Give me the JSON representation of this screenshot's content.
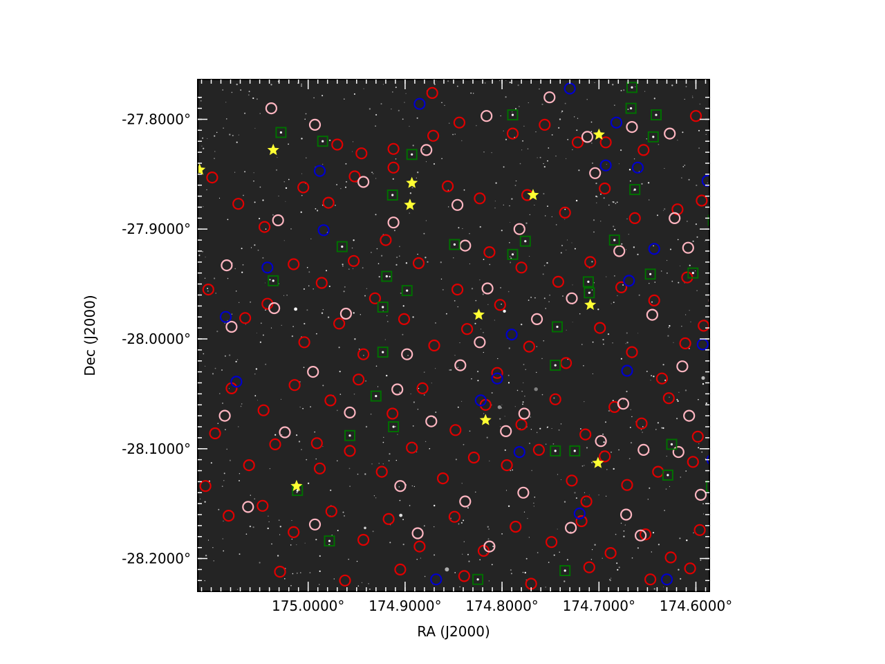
{
  "chart_data": {
    "type": "scatter",
    "title": "",
    "xlabel": "RA (J2000)",
    "ylabel": "Dec (J2000)",
    "x_axis": {
      "inverted": true,
      "unit": "deg"
    },
    "y_axis": {
      "unit": "deg"
    },
    "xlim": [
      175.1139,
      174.5861
    ],
    "ylim": [
      -28.2299,
      -27.7638
    ],
    "x_ticks": [
      {
        "value": 175.0,
        "label": "175.0000°"
      },
      {
        "value": 174.9,
        "label": "174.9000°"
      },
      {
        "value": 174.8,
        "label": "174.8000°"
      },
      {
        "value": 174.7,
        "label": "174.7000°"
      },
      {
        "value": 174.6,
        "label": "174.6000°"
      }
    ],
    "y_ticks": [
      {
        "value": -27.8,
        "label": "-27.8000°"
      },
      {
        "value": -27.9,
        "label": "-27.9000°"
      },
      {
        "value": -28.0,
        "label": "-28.0000°"
      },
      {
        "value": -28.1,
        "label": "-28.1000°"
      },
      {
        "value": -28.2,
        "label": "-28.2000°"
      }
    ],
    "grid": false,
    "background": "grayscale star-field image",
    "colors": {
      "red_circle": "#e00000",
      "pink_circle": "#ffb6c1",
      "blue_circle": "#0000cc",
      "green_square": "#007000",
      "yellow_star": "#ffff33",
      "frame": "#000000"
    },
    "series": [
      {
        "marker": "circle",
        "color": "red",
        "points": [
          [
            174.97,
            -27.823
          ],
          [
            174.945,
            -27.831
          ],
          [
            174.912,
            -27.827
          ],
          [
            174.871,
            -27.815
          ],
          [
            174.844,
            -27.803
          ],
          [
            174.789,
            -27.813
          ],
          [
            174.756,
            -27.805
          ],
          [
            174.722,
            -27.821
          ],
          [
            174.693,
            -27.821
          ],
          [
            174.654,
            -27.828
          ],
          [
            175.005,
            -27.862
          ],
          [
            174.979,
            -27.876
          ],
          [
            174.952,
            -27.852
          ],
          [
            174.912,
            -27.844
          ],
          [
            174.856,
            -27.861
          ],
          [
            174.823,
            -27.872
          ],
          [
            174.774,
            -27.869
          ],
          [
            174.735,
            -27.885
          ],
          [
            174.694,
            -27.863
          ],
          [
            174.663,
            -27.89
          ],
          [
            174.619,
            -27.882
          ],
          [
            174.594,
            -27.874
          ],
          [
            175.072,
            -27.877
          ],
          [
            175.045,
            -27.898
          ],
          [
            175.015,
            -27.932
          ],
          [
            174.986,
            -27.949
          ],
          [
            174.953,
            -27.929
          ],
          [
            174.92,
            -27.91
          ],
          [
            174.886,
            -27.931
          ],
          [
            174.846,
            -27.955
          ],
          [
            174.813,
            -27.921
          ],
          [
            174.78,
            -27.935
          ],
          [
            174.742,
            -27.948
          ],
          [
            174.709,
            -27.93
          ],
          [
            174.677,
            -27.953
          ],
          [
            174.643,
            -27.965
          ],
          [
            174.609,
            -27.944
          ],
          [
            174.592,
            -27.988
          ],
          [
            175.065,
            -27.981
          ],
          [
            175.042,
            -27.968
          ],
          [
            175.004,
            -28.003
          ],
          [
            174.968,
            -27.986
          ],
          [
            174.943,
            -28.014
          ],
          [
            174.901,
            -27.982
          ],
          [
            174.87,
            -28.006
          ],
          [
            174.836,
            -27.991
          ],
          [
            174.805,
            -28.031
          ],
          [
            174.772,
            -28.007
          ],
          [
            174.734,
            -28.022
          ],
          [
            174.699,
            -27.99
          ],
          [
            174.666,
            -28.012
          ],
          [
            174.635,
            -28.036
          ],
          [
            174.611,
            -28.004
          ],
          [
            174.58,
            -28.023
          ],
          [
            175.079,
            -28.045
          ],
          [
            175.046,
            -28.065
          ],
          [
            175.014,
            -28.042
          ],
          [
            174.977,
            -28.056
          ],
          [
            174.948,
            -28.037
          ],
          [
            174.913,
            -28.068
          ],
          [
            174.882,
            -28.045
          ],
          [
            174.848,
            -28.083
          ],
          [
            174.817,
            -28.06
          ],
          [
            174.78,
            -28.078
          ],
          [
            174.745,
            -28.055
          ],
          [
            174.714,
            -28.087
          ],
          [
            174.684,
            -28.062
          ],
          [
            174.656,
            -28.077
          ],
          [
            174.628,
            -28.054
          ],
          [
            174.598,
            -28.089
          ],
          [
            175.061,
            -28.115
          ],
          [
            175.034,
            -28.096
          ],
          [
            174.988,
            -28.118
          ],
          [
            174.957,
            -28.102
          ],
          [
            174.924,
            -28.121
          ],
          [
            174.893,
            -28.099
          ],
          [
            174.861,
            -28.127
          ],
          [
            174.829,
            -28.108
          ],
          [
            174.795,
            -28.115
          ],
          [
            174.762,
            -28.101
          ],
          [
            174.728,
            -28.129
          ],
          [
            174.694,
            -28.107
          ],
          [
            174.671,
            -28.133
          ],
          [
            174.639,
            -28.121
          ],
          [
            174.603,
            -28.112
          ],
          [
            175.082,
            -28.161
          ],
          [
            175.047,
            -28.152
          ],
          [
            175.015,
            -28.176
          ],
          [
            174.976,
            -28.157
          ],
          [
            174.943,
            -28.183
          ],
          [
            174.917,
            -28.164
          ],
          [
            174.885,
            -28.189
          ],
          [
            174.849,
            -28.162
          ],
          [
            174.819,
            -28.193
          ],
          [
            174.786,
            -28.171
          ],
          [
            174.749,
            -28.185
          ],
          [
            174.718,
            -28.166
          ],
          [
            174.688,
            -28.195
          ],
          [
            174.652,
            -28.178
          ],
          [
            174.626,
            -28.199
          ],
          [
            174.596,
            -28.174
          ],
          [
            175.029,
            -28.212
          ],
          [
            174.962,
            -28.22
          ],
          [
            174.905,
            -28.21
          ],
          [
            174.839,
            -28.216
          ],
          [
            174.77,
            -28.223
          ],
          [
            174.71,
            -28.208
          ],
          [
            174.647,
            -28.219
          ],
          [
            174.606,
            -28.209
          ],
          [
            175.099,
            -27.853
          ],
          [
            175.103,
            -27.955
          ],
          [
            175.096,
            -28.086
          ],
          [
            175.106,
            -28.134
          ],
          [
            174.872,
            -27.776
          ],
          [
            174.6,
            -27.797
          ],
          [
            174.931,
            -27.963
          ],
          [
            174.802,
            -27.969
          ],
          [
            174.713,
            -28.148
          ],
          [
            174.991,
            -28.095
          ]
        ]
      },
      {
        "marker": "circle",
        "color": "pink",
        "points": [
          [
            175.038,
            -27.79
          ],
          [
            174.993,
            -27.805
          ],
          [
            174.878,
            -27.828
          ],
          [
            174.816,
            -27.797
          ],
          [
            174.751,
            -27.78
          ],
          [
            174.712,
            -27.816
          ],
          [
            174.666,
            -27.807
          ],
          [
            174.627,
            -27.813
          ],
          [
            174.943,
            -27.857
          ],
          [
            174.846,
            -27.878
          ],
          [
            174.704,
            -27.849
          ],
          [
            174.622,
            -27.89
          ],
          [
            175.031,
            -27.892
          ],
          [
            174.912,
            -27.894
          ],
          [
            174.838,
            -27.915
          ],
          [
            174.782,
            -27.9
          ],
          [
            174.679,
            -27.92
          ],
          [
            174.608,
            -27.917
          ],
          [
            175.084,
            -27.933
          ],
          [
            174.961,
            -27.977
          ],
          [
            174.815,
            -27.954
          ],
          [
            174.728,
            -27.963
          ],
          [
            174.645,
            -27.978
          ],
          [
            174.581,
            -27.965
          ],
          [
            175.035,
            -27.972
          ],
          [
            174.898,
            -28.014
          ],
          [
            174.823,
            -28.003
          ],
          [
            174.764,
            -27.982
          ],
          [
            174.614,
            -28.025
          ],
          [
            175.086,
            -28.07
          ],
          [
            174.995,
            -28.03
          ],
          [
            174.908,
            -28.046
          ],
          [
            174.843,
            -28.024
          ],
          [
            174.777,
            -28.068
          ],
          [
            174.675,
            -28.059
          ],
          [
            174.607,
            -28.07
          ],
          [
            175.024,
            -28.085
          ],
          [
            174.957,
            -28.067
          ],
          [
            174.873,
            -28.075
          ],
          [
            174.796,
            -28.084
          ],
          [
            174.698,
            -28.093
          ],
          [
            174.618,
            -28.103
          ],
          [
            175.062,
            -28.153
          ],
          [
            174.905,
            -28.134
          ],
          [
            174.838,
            -28.148
          ],
          [
            174.778,
            -28.14
          ],
          [
            174.672,
            -28.16
          ],
          [
            174.595,
            -28.142
          ],
          [
            174.993,
            -28.169
          ],
          [
            174.887,
            -28.177
          ],
          [
            174.813,
            -28.189
          ],
          [
            174.729,
            -28.172
          ],
          [
            174.657,
            -28.179
          ],
          [
            175.079,
            -27.989
          ],
          [
            174.654,
            -28.101
          ]
        ]
      },
      {
        "marker": "circle",
        "color": "blue",
        "points": [
          [
            174.885,
            -27.786
          ],
          [
            174.73,
            -27.772
          ],
          [
            174.682,
            -27.803
          ],
          [
            174.66,
            -27.844
          ],
          [
            174.988,
            -27.847
          ],
          [
            174.693,
            -27.842
          ],
          [
            174.588,
            -27.856
          ],
          [
            174.984,
            -27.901
          ],
          [
            174.643,
            -27.918
          ],
          [
            175.042,
            -27.935
          ],
          [
            174.669,
            -27.947
          ],
          [
            175.085,
            -27.98
          ],
          [
            174.79,
            -27.996
          ],
          [
            174.593,
            -28.005
          ],
          [
            175.074,
            -28.039
          ],
          [
            174.822,
            -28.056
          ],
          [
            174.805,
            -28.036
          ],
          [
            174.782,
            -28.103
          ],
          [
            174.583,
            -28.11
          ],
          [
            174.72,
            -28.159
          ],
          [
            174.868,
            -28.219
          ],
          [
            174.63,
            -28.219
          ],
          [
            174.577,
            -28.155
          ],
          [
            174.671,
            -28.029
          ]
        ]
      },
      {
        "marker": "square",
        "color": "green",
        "points": [
          [
            174.666,
            -27.771
          ],
          [
            174.667,
            -27.79
          ],
          [
            174.641,
            -27.796
          ],
          [
            174.789,
            -27.796
          ],
          [
            175.028,
            -27.812
          ],
          [
            174.985,
            -27.82
          ],
          [
            174.893,
            -27.832
          ],
          [
            174.663,
            -27.864
          ],
          [
            174.644,
            -27.816
          ],
          [
            174.913,
            -27.869
          ],
          [
            174.582,
            -27.892
          ],
          [
            174.965,
            -27.916
          ],
          [
            174.849,
            -27.914
          ],
          [
            174.776,
            -27.911
          ],
          [
            174.789,
            -27.923
          ],
          [
            174.684,
            -27.91
          ],
          [
            174.647,
            -27.941
          ],
          [
            174.603,
            -27.94
          ],
          [
            174.919,
            -27.943
          ],
          [
            174.898,
            -27.956
          ],
          [
            174.923,
            -27.971
          ],
          [
            175.036,
            -27.947
          ],
          [
            174.711,
            -27.948
          ],
          [
            174.71,
            -27.958
          ],
          [
            174.743,
            -27.989
          ],
          [
            174.923,
            -28.012
          ],
          [
            174.745,
            -28.024
          ],
          [
            174.93,
            -28.052
          ],
          [
            174.912,
            -28.08
          ],
          [
            174.957,
            -28.088
          ],
          [
            174.745,
            -28.102
          ],
          [
            174.725,
            -28.102
          ],
          [
            174.625,
            -28.096
          ],
          [
            174.629,
            -28.124
          ],
          [
            174.584,
            -28.134
          ],
          [
            175.011,
            -28.138
          ],
          [
            174.577,
            -28.161
          ],
          [
            174.978,
            -28.184
          ],
          [
            174.825,
            -28.219
          ],
          [
            174.735,
            -28.211
          ],
          [
            174.575,
            -28.088
          ]
        ]
      },
      {
        "marker": "star",
        "color": "yellow",
        "points": [
          [
            175.036,
            -27.828
          ],
          [
            174.7,
            -27.814
          ],
          [
            174.893,
            -27.858
          ],
          [
            174.895,
            -27.878
          ],
          [
            174.768,
            -27.869
          ],
          [
            174.824,
            -27.978
          ],
          [
            174.709,
            -27.969
          ],
          [
            174.817,
            -28.074
          ],
          [
            174.701,
            -28.113
          ],
          [
            175.012,
            -28.134
          ],
          [
            175.112,
            -27.846
          ]
        ]
      }
    ]
  }
}
